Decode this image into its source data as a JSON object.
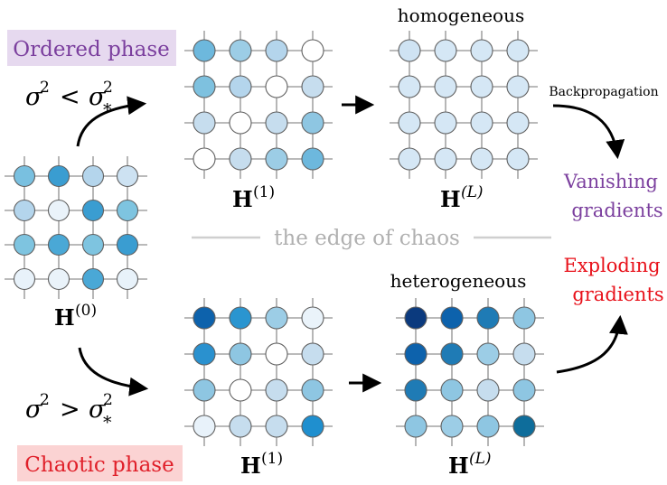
{
  "ordered_phase": {
    "label": "Ordered phase",
    "condition": {
      "sigma": "σ",
      "exp": "2",
      "op": "<",
      "sub": "*"
    },
    "bg_color": "#e6d9ef",
    "text_color": "#7b3f9e"
  },
  "chaotic_phase": {
    "label": "Chaotic phase",
    "condition": {
      "sigma": "σ",
      "exp": "2",
      "op": ">",
      "sub": "*"
    },
    "bg_color": "#fbd3d3",
    "text_color": "#e0202a"
  },
  "edge_of_chaos": {
    "label": "the edge of chaos",
    "color": "#b0b0b0"
  },
  "labels": {
    "homogeneous": "homogeneous",
    "heterogeneous": "heterogeneous",
    "backpropagation": "Backpropagation",
    "vanishing": [
      "Vanishing",
      "gradients"
    ],
    "exploding": [
      "Exploding",
      "gradients"
    ],
    "vanishing_color": "#7b3f9e",
    "exploding_color": "#e8111a"
  },
  "matrix_labels": {
    "symbol": "H",
    "h0": "(0)",
    "h1_top": "(1)",
    "hL_top": "(L)",
    "h1_bottom": "(1)",
    "hL_bottom": "(L)"
  },
  "grids": {
    "h0": [
      [
        "#79c0e0",
        "#3a9dd1",
        "#b4d5ec",
        "#cde2f2"
      ],
      [
        "#b4d5ec",
        "#eaf3fa",
        "#3a9dd1",
        "#7ec4e0"
      ],
      [
        "#7ec4e0",
        "#4aa8d6",
        "#7ec4e0",
        "#3a9dd1"
      ],
      [
        "#e8f2fa",
        "#eaf3fa",
        "#4aa8d6",
        "#e8f2fa"
      ]
    ],
    "h1_top": [
      [
        "#6db8dd",
        "#9ccde6",
        "#b4d5ec",
        "#ffffff"
      ],
      [
        "#7ec1df",
        "#b4d5ec",
        "#ffffff",
        "#c6ddee"
      ],
      [
        "#c6ddee",
        "#ffffff",
        "#c6ddee",
        "#8ec6e2"
      ],
      [
        "#ffffff",
        "#c6ddee",
        "#9ccde6",
        "#6db8dd"
      ]
    ],
    "hL_top": [
      [
        "#cfe3f3",
        "#d5e7f5",
        "#d5e7f5",
        "#d5e7f5"
      ],
      [
        "#d5e7f5",
        "#d5e7f5",
        "#d5e7f5",
        "#d5e7f5"
      ],
      [
        "#d5e7f5",
        "#d5e7f5",
        "#d5e7f5",
        "#d5e7f5"
      ],
      [
        "#d5e7f5",
        "#d5e7f5",
        "#d5e7f5",
        "#d5e7f5"
      ]
    ],
    "h1_bottom": [
      [
        "#0d62ac",
        "#2a95d0",
        "#9ccde6",
        "#eaf3fa"
      ],
      [
        "#2a91cf",
        "#8ec6e2",
        "#ffffff",
        "#c6ddee"
      ],
      [
        "#8ec6e2",
        "#ffffff",
        "#c6ddee",
        "#8ec6e2"
      ],
      [
        "#e8f2fa",
        "#c6ddee",
        "#c6ddee",
        "#1f8fcf"
      ]
    ],
    "hL_bottom": [
      [
        "#0b3a7e",
        "#0d62ac",
        "#1f7bb5",
        "#8ec6e2"
      ],
      [
        "#0d62ac",
        "#1f7bb5",
        "#9ccde6",
        "#c6ddee"
      ],
      [
        "#1f7bb5",
        "#8ec6e2",
        "#c6ddee",
        "#8ec6e2"
      ],
      [
        "#8ec6e2",
        "#9ccde6",
        "#8ec6e2",
        "#0e6d9b"
      ]
    ]
  },
  "colors": {
    "grid_line": "#909090",
    "node_stroke": "#606060",
    "arrow": "#000000"
  }
}
